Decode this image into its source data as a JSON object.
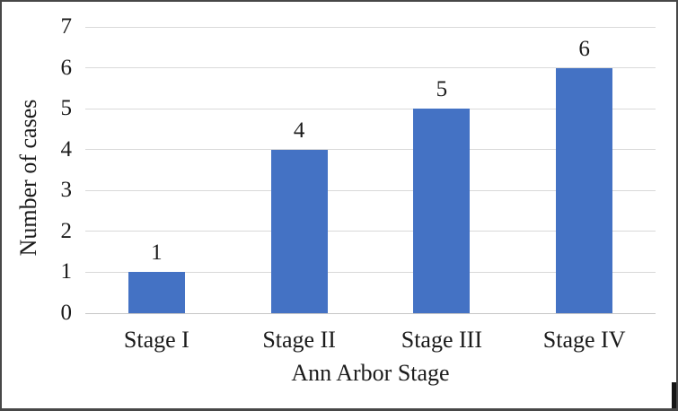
{
  "figure": {
    "background": "#ffffff",
    "border_color": "#474747"
  },
  "chart_data": {
    "type": "bar",
    "title": "",
    "categories": [
      "Stage I",
      "Stage II",
      "Stage III",
      "Stage IV"
    ],
    "values": [
      1,
      4,
      5,
      6
    ],
    "data_labels": [
      "1",
      "4",
      "5",
      "6"
    ],
    "xlabel": "Ann Arbor Stage",
    "ylabel": "Number of cases",
    "ylim": [
      0,
      7
    ],
    "yticks": [
      0,
      1,
      2,
      3,
      4,
      5,
      6,
      7
    ],
    "grid": true,
    "legend_position": "none",
    "bar_color": "#4472c4",
    "gridline_color": "#d9d9d9",
    "axis_line_color": "#c6c6c6",
    "text_color": "#1b1b1b"
  }
}
